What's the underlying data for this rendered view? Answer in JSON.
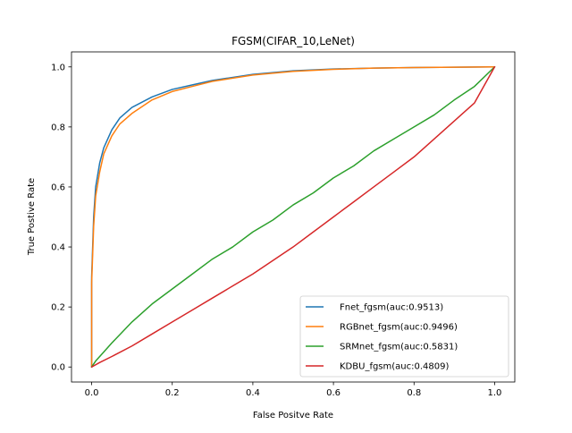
{
  "chart_data": {
    "type": "line",
    "title": "FGSM(CIFAR_10,LeNet)",
    "xlabel": "False Positve Rate",
    "ylabel": "True Postive Rate",
    "xlim": [
      -0.05,
      1.05
    ],
    "ylim": [
      -0.05,
      1.05
    ],
    "xticks": [
      0.0,
      0.2,
      0.4,
      0.6,
      0.8,
      1.0
    ],
    "xtick_labels": [
      "0.0",
      "0.2",
      "0.4",
      "0.6",
      "0.8",
      "1.0"
    ],
    "yticks": [
      0.0,
      0.2,
      0.4,
      0.6,
      0.8,
      1.0
    ],
    "ytick_labels": [
      "0.0",
      "0.2",
      "0.4",
      "0.6",
      "0.8",
      "1.0"
    ],
    "grid": false,
    "legend_position": "lower-right",
    "series": [
      {
        "name": "Fnet_fgsm(auc:0.9513)",
        "color": "#1f77b4",
        "x": [
          0.0,
          0.0,
          0.005,
          0.01,
          0.02,
          0.03,
          0.05,
          0.07,
          0.1,
          0.15,
          0.2,
          0.25,
          0.3,
          0.4,
          0.5,
          0.6,
          0.7,
          0.8,
          0.9,
          1.0
        ],
        "y": [
          0.0,
          0.3,
          0.5,
          0.6,
          0.68,
          0.73,
          0.79,
          0.83,
          0.865,
          0.9,
          0.925,
          0.94,
          0.955,
          0.975,
          0.987,
          0.993,
          0.996,
          0.998,
          0.999,
          1.0
        ]
      },
      {
        "name": "RGBnet_fgsm(auc:0.9496)",
        "color": "#ff7f0e",
        "x": [
          0.0,
          0.0,
          0.005,
          0.01,
          0.02,
          0.03,
          0.05,
          0.07,
          0.1,
          0.15,
          0.2,
          0.25,
          0.3,
          0.4,
          0.5,
          0.6,
          0.7,
          0.8,
          0.9,
          1.0
        ],
        "y": [
          0.0,
          0.28,
          0.47,
          0.57,
          0.65,
          0.71,
          0.77,
          0.81,
          0.845,
          0.89,
          0.918,
          0.935,
          0.952,
          0.973,
          0.985,
          0.992,
          0.996,
          0.998,
          0.999,
          1.0
        ]
      },
      {
        "name": "SRMnet_fgsm(auc:0.5831)",
        "color": "#2ca02c",
        "x": [
          0.0,
          0.01,
          0.03,
          0.05,
          0.1,
          0.15,
          0.2,
          0.25,
          0.3,
          0.35,
          0.4,
          0.45,
          0.5,
          0.55,
          0.6,
          0.65,
          0.7,
          0.75,
          0.8,
          0.85,
          0.9,
          0.95,
          1.0
        ],
        "y": [
          0.0,
          0.02,
          0.05,
          0.08,
          0.15,
          0.21,
          0.26,
          0.31,
          0.36,
          0.4,
          0.45,
          0.49,
          0.54,
          0.58,
          0.63,
          0.67,
          0.72,
          0.76,
          0.8,
          0.84,
          0.89,
          0.935,
          1.0
        ]
      },
      {
        "name": "KDBU_fgsm(auc:0.4809)",
        "color": "#d62728",
        "x": [
          0.0,
          0.02,
          0.05,
          0.1,
          0.15,
          0.2,
          0.25,
          0.3,
          0.35,
          0.4,
          0.45,
          0.5,
          0.55,
          0.6,
          0.65,
          0.7,
          0.75,
          0.8,
          0.85,
          0.9,
          0.95,
          1.0
        ],
        "y": [
          0.0,
          0.015,
          0.035,
          0.07,
          0.11,
          0.15,
          0.19,
          0.23,
          0.27,
          0.31,
          0.355,
          0.4,
          0.45,
          0.5,
          0.55,
          0.6,
          0.65,
          0.7,
          0.76,
          0.82,
          0.88,
          1.0
        ]
      }
    ]
  }
}
